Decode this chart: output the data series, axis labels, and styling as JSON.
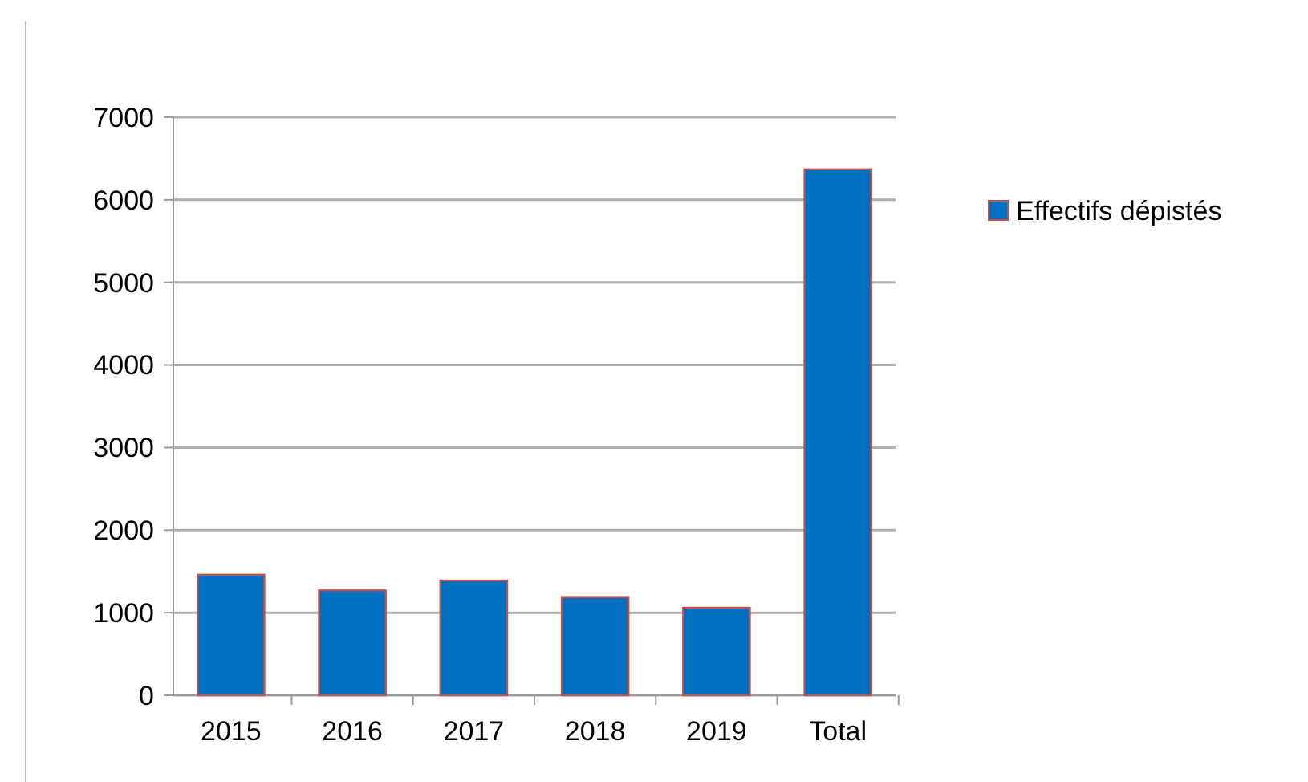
{
  "chart_data": {
    "type": "bar",
    "categories": [
      "2015",
      "2016",
      "2017",
      "2018",
      "2019",
      "Total"
    ],
    "series": [
      {
        "name": "Effectifs dépistés",
        "color": "#0070c0",
        "values": [
          1460,
          1270,
          1390,
          1190,
          1060,
          6370
        ]
      }
    ],
    "ylim": [
      0,
      7000
    ],
    "yticks": [
      0,
      1000,
      2000,
      3000,
      4000,
      5000,
      6000,
      7000
    ],
    "grid": "y",
    "legend": "right"
  }
}
